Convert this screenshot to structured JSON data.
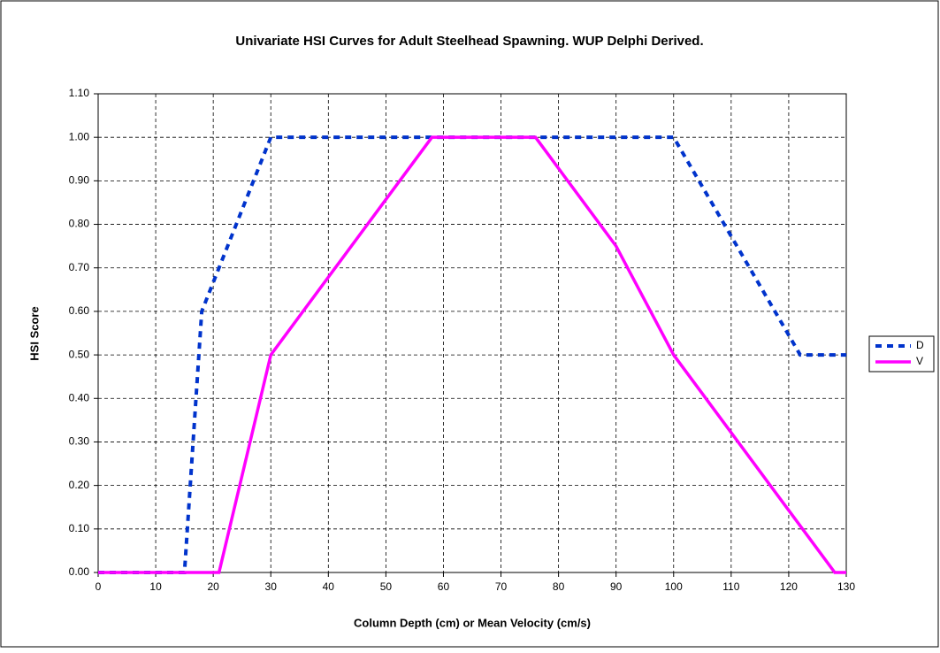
{
  "chart_data": {
    "type": "line",
    "title": "Univariate HSI Curves for Adult Steelhead Spawning.  WUP Delphi Derived.",
    "x_label": "Column Depth (cm) or Mean Velocity (cm/s)",
    "y_label": "HSI Score",
    "xlim": [
      0,
      130
    ],
    "xticks": [
      0,
      10,
      20,
      30,
      40,
      50,
      60,
      70,
      80,
      90,
      100,
      110,
      120,
      130
    ],
    "ylim": [
      0,
      1.1
    ],
    "yticks": [
      {
        "value": 0,
        "label": "0.00"
      },
      {
        "value": 0.1,
        "label": "0.10"
      },
      {
        "value": 0.2,
        "label": "0.20"
      },
      {
        "value": 0.3,
        "label": "0.30"
      },
      {
        "value": 0.4,
        "label": "0.40"
      },
      {
        "value": 0.5,
        "label": "0.50"
      },
      {
        "value": 0.6,
        "label": "0.60"
      },
      {
        "value": 0.7,
        "label": "0.70"
      },
      {
        "value": 0.8,
        "label": "0.80"
      },
      {
        "value": 0.9,
        "label": "0.90"
      },
      {
        "value": 1,
        "label": "1.00"
      },
      {
        "value": 1.1,
        "label": "1.10"
      }
    ],
    "grid": true,
    "legend": "right",
    "series": [
      {
        "name": "D",
        "color": "#0033cc",
        "dash": true,
        "x": [
          0,
          15,
          18,
          30,
          100,
          122,
          130
        ],
        "values": [
          0,
          0,
          0.6,
          1,
          1,
          0.5,
          0.5
        ]
      },
      {
        "name": "V",
        "color": "#ff00ff",
        "dash": false,
        "x": [
          0,
          21,
          30,
          58,
          76,
          90,
          100,
          128,
          130
        ],
        "values": [
          0,
          0,
          0.5,
          1,
          1,
          0.75,
          0.5,
          0,
          0
        ]
      }
    ]
  }
}
